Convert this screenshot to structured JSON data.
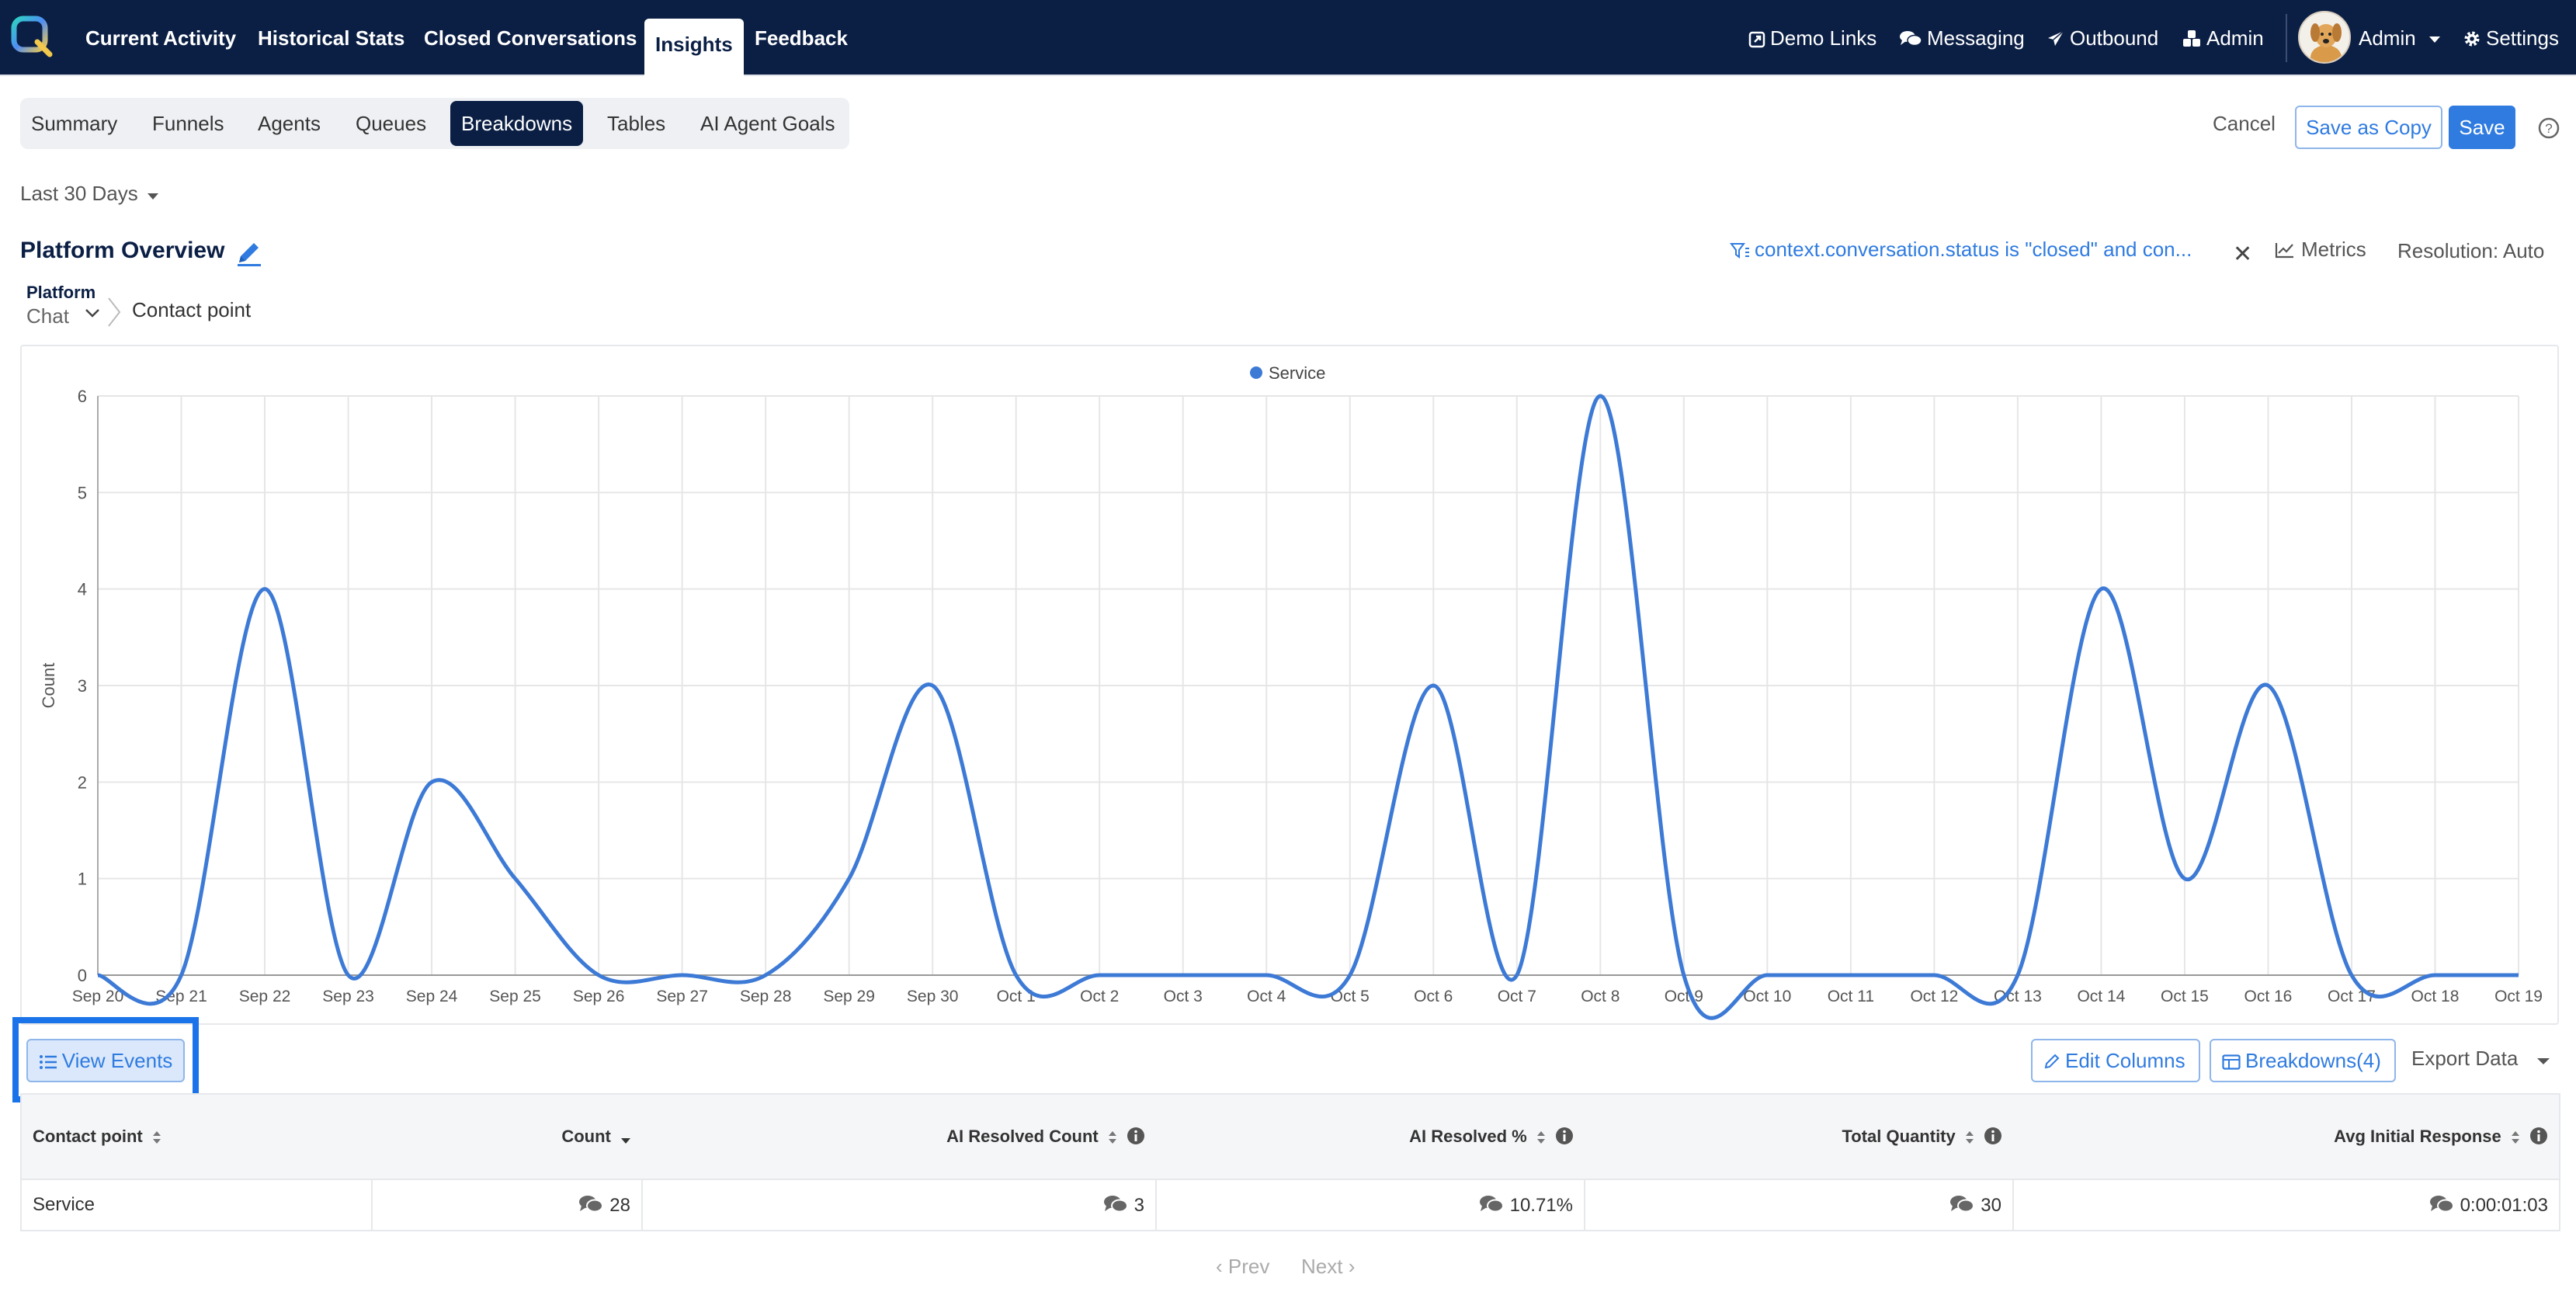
{
  "nav": {
    "tabs": [
      "Current Activity",
      "Historical Stats",
      "Closed Conversations",
      "Insights",
      "Feedback"
    ],
    "right": {
      "demo_links": "Demo Links",
      "messaging": "Messaging",
      "outbound": "Outbound",
      "admin": "Admin",
      "user_menu": "Admin",
      "settings": "Settings"
    }
  },
  "subtabs": [
    "Summary",
    "Funnels",
    "Agents",
    "Queues",
    "Breakdowns",
    "Tables",
    "AI Agent Goals"
  ],
  "actions": {
    "cancel": "Cancel",
    "save_copy": "Save as Copy",
    "save": "Save"
  },
  "date_range": "Last 30 Days",
  "page_title": "Platform Overview",
  "filter": {
    "text": "context.conversation.status is \"closed\" and con...",
    "metrics": "Metrics",
    "resolution": "Resolution: Auto"
  },
  "breadcrumb": {
    "platform_label": "Platform",
    "platform_value": "Chat",
    "current": "Contact point"
  },
  "chart_data": {
    "type": "line",
    "ylabel": "Count",
    "ylim": [
      0,
      6
    ],
    "yticks": [
      "0",
      "1",
      "2",
      "3",
      "4",
      "5",
      "6"
    ],
    "x": [
      "Sep 20",
      "Sep 21",
      "Sep 22",
      "Sep 23",
      "Sep 24",
      "Sep 25",
      "Sep 26",
      "Sep 27",
      "Sep 28",
      "Sep 29",
      "Sep 30",
      "Oct 1",
      "Oct 2",
      "Oct 3",
      "Oct 4",
      "Oct 5",
      "Oct 6",
      "Oct 7",
      "Oct 8",
      "Oct 9",
      "Oct 10",
      "Oct 11",
      "Oct 12",
      "Oct 13",
      "Oct 14",
      "Oct 15",
      "Oct 16",
      "Oct 17",
      "Oct 18",
      "Oct 19"
    ],
    "series": [
      {
        "name": "Service",
        "values": [
          0,
          0,
          4,
          0,
          2,
          1,
          0,
          0,
          0,
          1,
          3,
          0,
          0,
          0,
          0,
          0,
          3,
          0,
          6,
          0,
          0,
          0,
          0,
          0,
          4,
          1,
          3,
          0,
          0,
          0
        ]
      }
    ],
    "legend": "top-center",
    "grid": true,
    "colors": {
      "Service": "#3d7ad6"
    }
  },
  "table_actions": {
    "view_events": "View Events",
    "edit_columns": "Edit Columns",
    "breakdowns": "Breakdowns(4)",
    "export": "Export Data"
  },
  "table": {
    "columns": [
      "Contact point",
      "Count",
      "AI Resolved Count",
      "AI Resolved %",
      "Total Quantity",
      "Avg Initial Response"
    ],
    "rows": [
      [
        "Service",
        "28",
        "3",
        "10.71%",
        "30",
        "0:00:01:03"
      ]
    ]
  },
  "pagination": {
    "prev": "Prev",
    "next": "Next"
  }
}
